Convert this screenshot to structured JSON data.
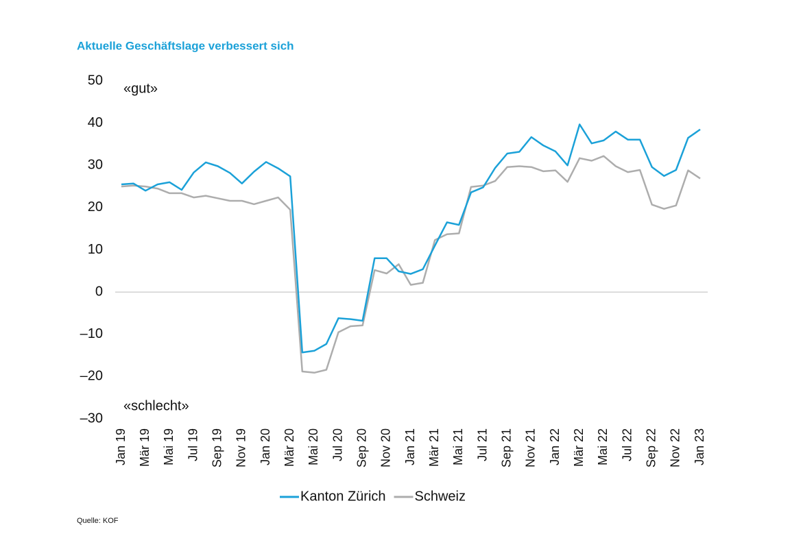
{
  "chart_data": {
    "type": "line",
    "title": "Aktuelle Geschäftslage verbessert sich",
    "annotations": [
      "«gut»",
      "«schlecht»"
    ],
    "source": "Quelle: KOF",
    "categories": [
      "Jan 19",
      null,
      "Mär 19",
      null,
      "Mai 19",
      null,
      "Jul 19",
      null,
      "Sep 19",
      null,
      "Nov 19",
      null,
      "Jan 20",
      null,
      "Mär 20",
      null,
      "Mai 20",
      null,
      "Jul 20",
      null,
      "Sep 20",
      null,
      "Nov 20",
      null,
      "Jan 21",
      null,
      "Mär 21",
      null,
      "Mai 21",
      null,
      "Jul 21",
      null,
      "Sep 21",
      null,
      "Nov 21",
      null,
      "Jan 22",
      null,
      "Mär 22",
      null,
      "Mai 22",
      null,
      "Jul 22",
      null,
      "Sep 22",
      null,
      "Nov 22",
      null,
      "Jan 23"
    ],
    "series": [
      {
        "name": "Kanton Zürich",
        "color": "#1ba1d8",
        "values": [
          25.5,
          25.7,
          24,
          25.5,
          26,
          24.2,
          28.3,
          30.7,
          29.8,
          28.2,
          25.7,
          28.5,
          30.8,
          29.3,
          27.4,
          -14.3,
          -13.9,
          -12.3,
          -6.2,
          -6.4,
          -6.8,
          8,
          8,
          4.9,
          4.3,
          5.4,
          11,
          16.5,
          15.9,
          23.6,
          24.8,
          29.4,
          32.8,
          33.2,
          36.7,
          34.7,
          33.3,
          30,
          39.7,
          35.2,
          35.9,
          38,
          36.1,
          36.1,
          29.6,
          27.5,
          28.9,
          36.5,
          38.5
        ]
      },
      {
        "name": "Schweiz",
        "color": "#adadad",
        "values": [
          25,
          25.2,
          25,
          24.5,
          23.4,
          23.4,
          22.4,
          22.8,
          22.2,
          21.6,
          21.6,
          20.8,
          21.6,
          22.4,
          19.5,
          -18.8,
          -19.1,
          -18.4,
          -9.5,
          -8.1,
          -7.9,
          5.2,
          4.4,
          6.6,
          1.7,
          2.2,
          12.3,
          13.7,
          13.9,
          24.9,
          25.2,
          26.3,
          29.6,
          29.8,
          29.6,
          28.6,
          28.8,
          26.1,
          31.7,
          31.1,
          32.2,
          29.8,
          28.4,
          28.9,
          20.7,
          19.7,
          20.5,
          28.8,
          26.9
        ]
      }
    ],
    "ylim": [
      -30,
      50
    ],
    "yticks": [
      {
        "value": -30,
        "label": "–30"
      },
      {
        "value": -20,
        "label": "–20"
      },
      {
        "value": -10,
        "label": "–10"
      },
      0,
      10,
      20,
      30,
      40,
      50
    ],
    "zero_line": true,
    "legend": "bottom"
  }
}
